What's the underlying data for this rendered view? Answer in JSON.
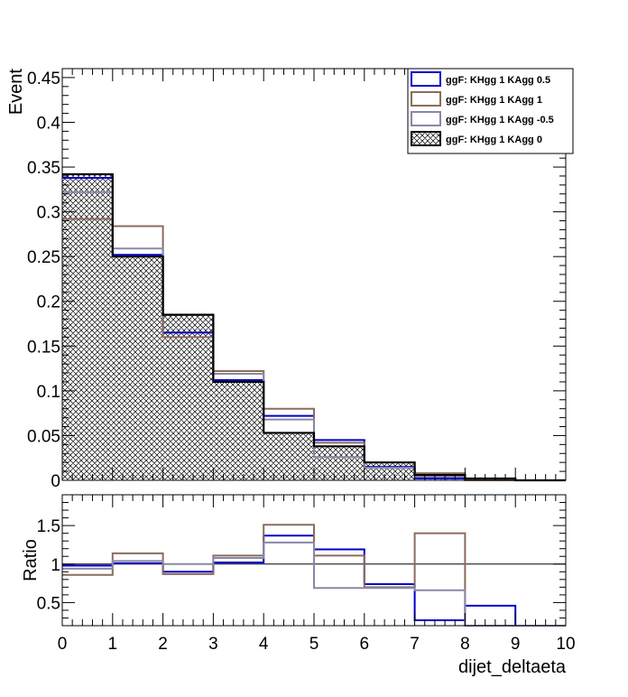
{
  "chart_data": [
    {
      "type": "histogram",
      "panel": "main",
      "ylabel": "Event",
      "ylim": [
        0,
        0.46
      ],
      "xlim": [
        0,
        10
      ],
      "bin_edges": [
        0,
        1,
        2,
        3,
        4,
        5,
        6,
        7,
        8,
        9,
        10
      ],
      "y_ticks": [
        "0",
        "0.05",
        "0.1",
        "0.15",
        "0.2",
        "0.25",
        "0.3",
        "0.35",
        "0.4",
        "0.45"
      ],
      "y_tick_values": [
        0,
        0.05,
        0.1,
        0.15,
        0.2,
        0.25,
        0.3,
        0.35,
        0.4,
        0.45
      ],
      "legend_position": "top-right",
      "series": [
        {
          "name": "ggF: KHgg 1 KAgg 0.5",
          "color": "#0000cc",
          "style": "line",
          "values": [
            0.338,
            0.252,
            0.165,
            0.112,
            0.072,
            0.045,
            0.015,
            0.002,
            0.001,
            0.0
          ]
        },
        {
          "name": "ggF: KHgg 1 KAgg 1",
          "color": "#8b6c5c",
          "style": "line",
          "values": [
            0.292,
            0.284,
            0.16,
            0.122,
            0.08,
            0.042,
            0.014,
            0.008,
            0.0,
            0.0
          ]
        },
        {
          "name": "ggF: KHgg 1 KAgg -0.5",
          "color": "#8888a8",
          "style": "line",
          "values": [
            0.322,
            0.259,
            0.185,
            0.119,
            0.068,
            0.026,
            0.014,
            0.004,
            0.002,
            0.0
          ]
        },
        {
          "name": "ggF: KHgg 1 KAgg 0",
          "color": "#000000",
          "style": "hatched",
          "values": [
            0.342,
            0.25,
            0.185,
            0.11,
            0.053,
            0.038,
            0.02,
            0.006,
            0.002,
            0.0
          ]
        }
      ]
    },
    {
      "type": "histogram",
      "panel": "ratio",
      "ylabel": "Ratio",
      "xlabel": "dijet_deltaeta",
      "ylim": [
        0.2,
        1.9
      ],
      "xlim": [
        0,
        10
      ],
      "bin_edges": [
        0,
        1,
        2,
        3,
        4,
        5,
        6,
        7,
        8,
        9,
        10
      ],
      "y_ticks": [
        "0.5",
        "1",
        "1.5"
      ],
      "y_tick_values": [
        0.5,
        1,
        1.5
      ],
      "x_ticks": [
        "0",
        "1",
        "2",
        "3",
        "4",
        "5",
        "6",
        "7",
        "8",
        "9",
        "10"
      ],
      "reference_line": 1,
      "series": [
        {
          "name": "ggF: KHgg 1 KAgg 0.5",
          "color": "#0000cc",
          "values": [
            0.98,
            1.01,
            0.9,
            1.02,
            1.37,
            1.19,
            0.74,
            0.27,
            0.46,
            0.2
          ]
        },
        {
          "name": "ggF: KHgg 1 KAgg 1",
          "color": "#8b6c5c",
          "values": [
            0.86,
            1.14,
            0.87,
            1.11,
            1.51,
            1.11,
            0.7,
            1.4,
            0.2,
            0.2
          ]
        },
        {
          "name": "ggF: KHgg 1 KAgg -0.5",
          "color": "#8888a8",
          "values": [
            0.94,
            1.04,
            1.0,
            1.08,
            1.28,
            0.69,
            0.69,
            0.66,
            0.2,
            0.2
          ]
        }
      ]
    }
  ]
}
